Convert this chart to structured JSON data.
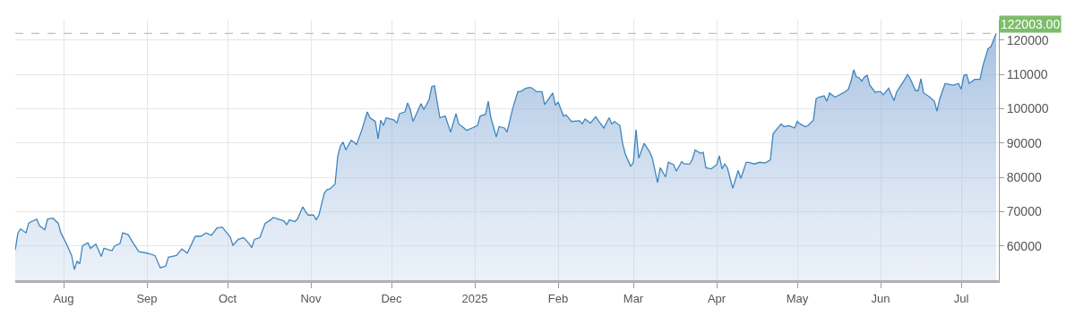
{
  "chart_data": {
    "type": "area",
    "x": [
      "2024-07-14",
      "2024-07-15",
      "2024-07-16",
      "2024-07-18",
      "2024-07-19",
      "2024-07-20",
      "2024-07-22",
      "2024-07-23",
      "2024-07-25",
      "2024-07-26",
      "2024-07-28",
      "2024-07-30",
      "2024-07-31",
      "2024-08-02",
      "2024-08-04",
      "2024-08-05",
      "2024-08-06",
      "2024-08-07",
      "2024-08-08",
      "2024-08-10",
      "2024-08-11",
      "2024-08-13",
      "2024-08-15",
      "2024-08-16",
      "2024-08-19",
      "2024-08-20",
      "2024-08-22",
      "2024-08-23",
      "2024-08-25",
      "2024-08-27",
      "2024-08-29",
      "2024-09-01",
      "2024-09-04",
      "2024-09-06",
      "2024-09-08",
      "2024-09-09",
      "2024-09-12",
      "2024-09-14",
      "2024-09-16",
      "2024-09-17",
      "2024-09-19",
      "2024-09-21",
      "2024-09-23",
      "2024-09-25",
      "2024-09-27",
      "2024-09-29",
      "2024-10-02",
      "2024-10-03",
      "2024-10-05",
      "2024-10-07",
      "2024-10-09",
      "2024-10-10",
      "2024-10-11",
      "2024-10-13",
      "2024-10-15",
      "2024-10-17",
      "2024-10-18",
      "2024-10-20",
      "2024-10-22",
      "2024-10-23",
      "2024-10-24",
      "2024-10-26",
      "2024-10-27",
      "2024-10-29",
      "2024-10-30",
      "2024-10-31",
      "2024-11-02",
      "2024-11-03",
      "2024-11-04",
      "2024-11-06",
      "2024-11-07",
      "2024-11-08",
      "2024-11-10",
      "2024-11-11",
      "2024-11-12",
      "2024-11-13",
      "2024-11-14",
      "2024-11-16",
      "2024-11-17",
      "2024-11-18",
      "2024-11-20",
      "2024-11-22",
      "2024-11-23",
      "2024-11-25",
      "2024-11-26",
      "2024-11-27",
      "2024-11-28",
      "2024-11-29",
      "2024-12-02",
      "2024-12-03",
      "2024-12-04",
      "2024-12-06",
      "2024-12-07",
      "2024-12-08",
      "2024-12-09",
      "2024-12-12",
      "2024-12-13",
      "2024-12-14",
      "2024-12-15",
      "2024-12-16",
      "2024-12-17",
      "2024-12-19",
      "2024-12-21",
      "2024-12-23",
      "2024-12-25",
      "2024-12-26",
      "2024-12-28",
      "2024-12-29",
      "2024-12-31",
      "2025-01-02",
      "2025-01-03",
      "2025-01-05",
      "2025-01-06",
      "2025-01-07",
      "2025-01-09",
      "2025-01-10",
      "2025-01-12",
      "2025-01-13",
      "2025-01-15",
      "2025-01-17",
      "2025-01-18",
      "2025-01-20",
      "2025-01-21",
      "2025-01-22",
      "2025-01-24",
      "2025-01-26",
      "2025-01-27",
      "2025-01-30",
      "2025-01-31",
      "2025-02-01",
      "2025-02-03",
      "2025-02-04",
      "2025-02-06",
      "2025-02-09",
      "2025-02-10",
      "2025-02-11",
      "2025-02-13",
      "2025-02-15",
      "2025-02-16",
      "2025-02-18",
      "2025-02-20",
      "2025-02-21",
      "2025-02-22",
      "2025-02-24",
      "2025-02-25",
      "2025-02-26",
      "2025-02-28",
      "2025-03-01",
      "2025-03-02",
      "2025-03-03",
      "2025-03-05",
      "2025-03-07",
      "2025-03-08",
      "2025-03-10",
      "2025-03-11",
      "2025-03-13",
      "2025-03-14",
      "2025-03-16",
      "2025-03-17",
      "2025-03-19",
      "2025-03-20",
      "2025-03-22",
      "2025-03-23",
      "2025-03-24",
      "2025-03-26",
      "2025-03-27",
      "2025-03-28",
      "2025-03-30",
      "2025-04-01",
      "2025-04-02",
      "2025-04-03",
      "2025-04-04",
      "2025-04-05",
      "2025-04-06",
      "2025-04-07",
      "2025-04-09",
      "2025-04-10",
      "2025-04-12",
      "2025-04-13",
      "2025-04-15",
      "2025-04-17",
      "2025-04-19",
      "2025-04-21",
      "2025-04-22",
      "2025-04-23",
      "2025-04-25",
      "2025-04-26",
      "2025-04-28",
      "2025-04-30",
      "2025-05-01",
      "2025-05-02",
      "2025-05-04",
      "2025-05-05",
      "2025-05-07",
      "2025-05-08",
      "2025-05-09",
      "2025-05-11",
      "2025-05-12",
      "2025-05-13",
      "2025-05-15",
      "2025-05-16",
      "2025-05-18",
      "2025-05-20",
      "2025-05-21",
      "2025-05-22",
      "2025-05-23",
      "2025-05-24",
      "2025-05-25",
      "2025-05-26",
      "2025-05-27",
      "2025-05-28",
      "2025-05-30",
      "2025-05-31",
      "2025-06-01",
      "2025-06-02",
      "2025-06-04",
      "2025-06-05",
      "2025-06-06",
      "2025-06-07",
      "2025-06-08",
      "2025-06-10",
      "2025-06-11",
      "2025-06-12",
      "2025-06-14",
      "2025-06-15",
      "2025-06-16",
      "2025-06-17",
      "2025-06-19",
      "2025-06-21",
      "2025-06-22",
      "2025-06-23",
      "2025-06-25",
      "2025-06-26",
      "2025-06-28",
      "2025-06-30",
      "2025-07-01",
      "2025-07-02",
      "2025-07-03",
      "2025-07-04",
      "2025-07-06",
      "2025-07-08",
      "2025-07-09",
      "2025-07-11",
      "2025-07-12",
      "2025-07-13",
      "2025-07-14"
    ],
    "series": [
      {
        "color": "#3f86bd",
        "values": [
          58800,
          63800,
          65000,
          63800,
          66600,
          67100,
          67800,
          65900,
          64700,
          67800,
          68100,
          66600,
          63800,
          60700,
          57200,
          53100,
          55500,
          54800,
          60000,
          60900,
          59300,
          60500,
          56900,
          59300,
          58600,
          60000,
          60700,
          63800,
          63300,
          60700,
          58300,
          57900,
          57200,
          53600,
          54100,
          56700,
          57200,
          59100,
          57900,
          59500,
          62800,
          62800,
          63800,
          63100,
          65200,
          65500,
          62600,
          60200,
          61900,
          62400,
          60700,
          59500,
          61900,
          62400,
          66600,
          67600,
          68300,
          67800,
          67300,
          66200,
          67600,
          67100,
          67800,
          71400,
          70000,
          69000,
          69000,
          67600,
          69000,
          75400,
          76400,
          76600,
          78000,
          86100,
          89200,
          90300,
          88000,
          90800,
          90300,
          89600,
          93900,
          99100,
          97400,
          96300,
          91300,
          96700,
          95100,
          97400,
          96700,
          95800,
          98600,
          99100,
          101700,
          99800,
          96300,
          101500,
          99800,
          101200,
          102700,
          106500,
          106700,
          97400,
          97900,
          93200,
          98600,
          95600,
          94400,
          93700,
          94400,
          95100,
          97900,
          98400,
          102200,
          97400,
          91800,
          94800,
          94400,
          93200,
          99800,
          105000,
          105000,
          106000,
          106200,
          106200,
          105000,
          105000,
          101200,
          104600,
          101000,
          102000,
          97900,
          98200,
          96300,
          96500,
          95600,
          97000,
          95800,
          97700,
          96500,
          94400,
          97400,
          95600,
          96300,
          95100,
          89900,
          86800,
          83200,
          84400,
          93900,
          85600,
          89900,
          87500,
          85800,
          78500,
          82800,
          80100,
          84400,
          83700,
          81800,
          84600,
          83900,
          83900,
          85400,
          88000,
          87000,
          87300,
          82800,
          82500,
          83700,
          86300,
          82500,
          83900,
          82800,
          79700,
          76800,
          82000,
          79700,
          84400,
          84400,
          83900,
          84400,
          84200,
          85100,
          92700,
          93700,
          95600,
          94800,
          95100,
          94400,
          96300,
          95600,
          94800,
          95100,
          96700,
          102900,
          103400,
          103800,
          102200,
          104600,
          103400,
          103800,
          104600,
          105700,
          108100,
          111400,
          109300,
          109100,
          108100,
          109300,
          109800,
          106900,
          104800,
          105000,
          105000,
          104100,
          106000,
          104100,
          102400,
          105000,
          106200,
          108600,
          110000,
          108800,
          105300,
          105300,
          108800,
          104600,
          103600,
          102200,
          99300,
          102900,
          107400,
          107200,
          106900,
          107400,
          105700,
          109800,
          110000,
          107400,
          108600,
          108600,
          112400,
          117600,
          118100,
          120000,
          122003
        ]
      }
    ],
    "xlim": [
      "2024-07-14",
      "2025-07-15"
    ],
    "xticks": [
      {
        "value": "2024-08-01",
        "label": "Aug"
      },
      {
        "value": "2024-09-01",
        "label": "Sep"
      },
      {
        "value": "2024-10-01",
        "label": "Oct"
      },
      {
        "value": "2024-11-01",
        "label": "Nov"
      },
      {
        "value": "2024-12-01",
        "label": "Dec"
      },
      {
        "value": "2025-01-01",
        "label": "2025"
      },
      {
        "value": "2025-02-01",
        "label": "Feb"
      },
      {
        "value": "2025-03-01",
        "label": "Mar"
      },
      {
        "value": "2025-04-01",
        "label": "Apr"
      },
      {
        "value": "2025-05-01",
        "label": "May"
      },
      {
        "value": "2025-06-01",
        "label": "Jun"
      },
      {
        "value": "2025-07-01",
        "label": "Jul"
      }
    ],
    "ylim": [
      50000,
      126000
    ],
    "yticks": [
      60000,
      70000,
      80000,
      90000,
      100000,
      110000,
      120000
    ],
    "grid": true,
    "ref_lines": [
      {
        "axis": "y",
        "value": 122003,
        "label": "122003.00",
        "color": "#b8c4b8",
        "line_style": "dashed"
      }
    ]
  }
}
